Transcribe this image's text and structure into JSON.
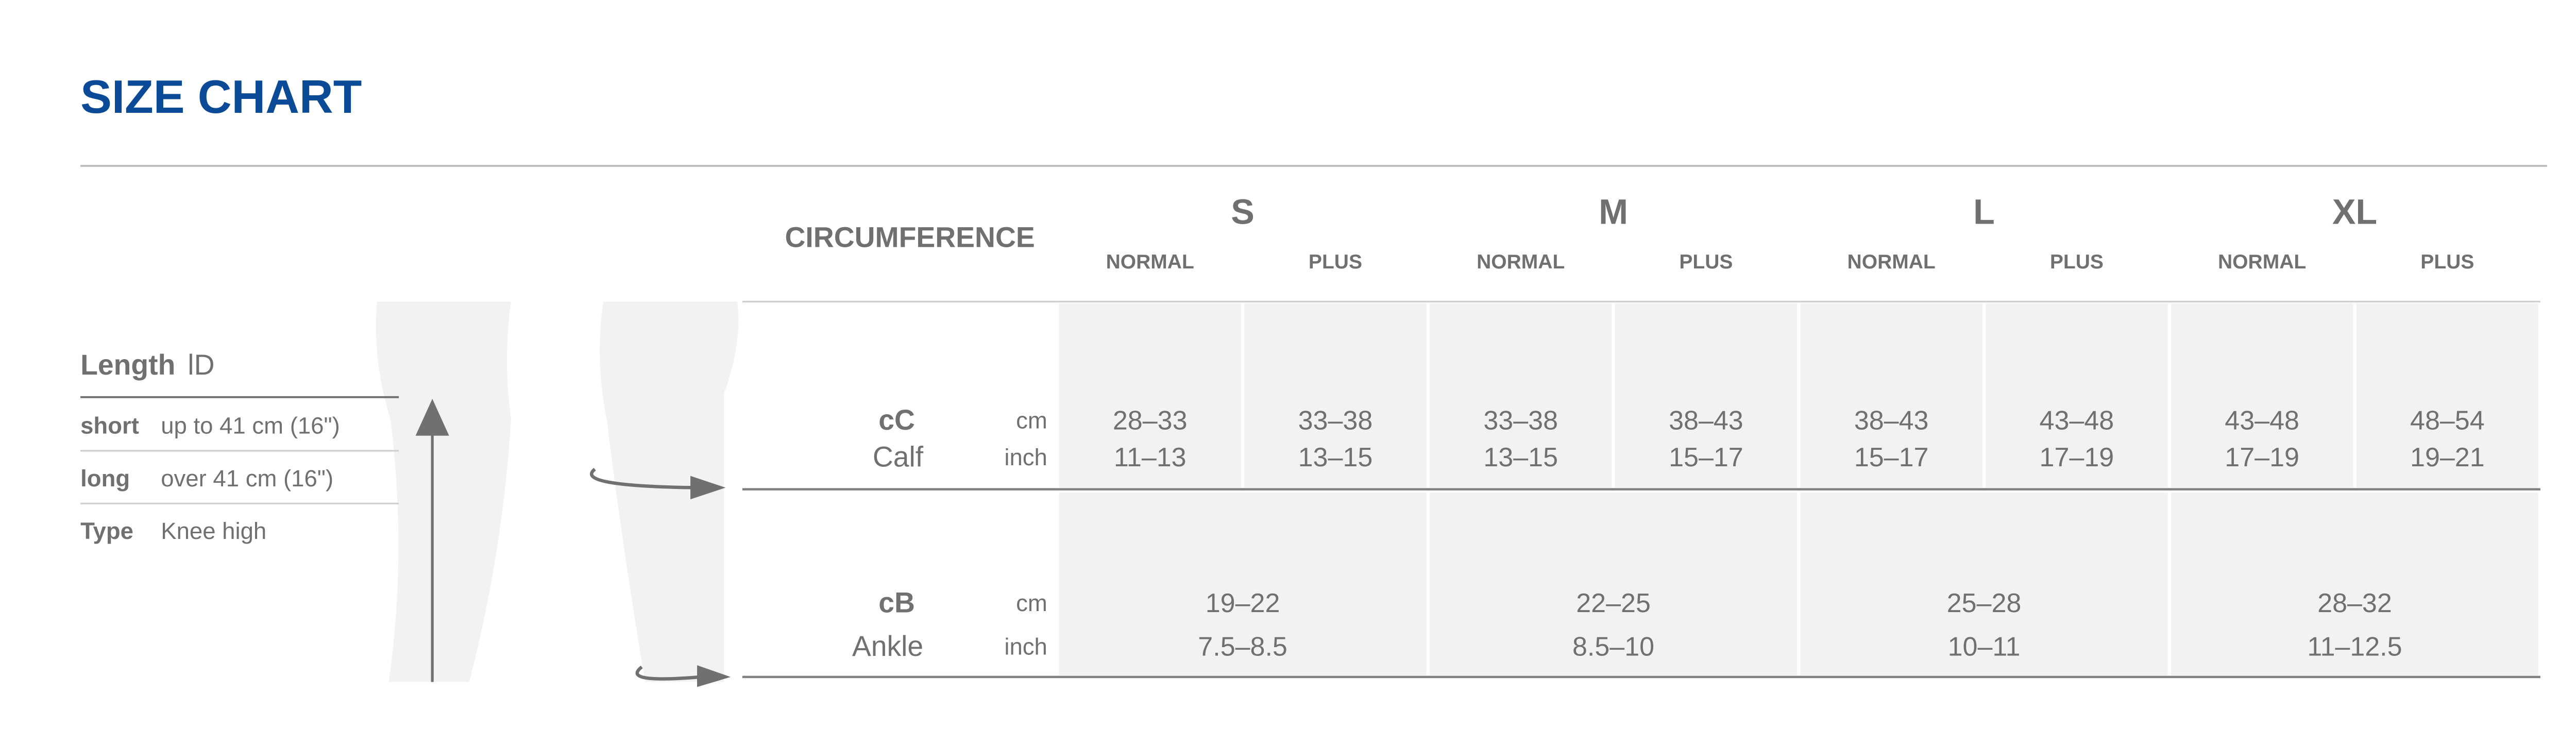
{
  "title": "SIZE CHART",
  "length": {
    "label": "Length",
    "symbol": "lD",
    "rows": [
      {
        "label": "short",
        "value": "up to 41 cm (16\")"
      },
      {
        "label": "long",
        "value": "over 41 cm (16\")"
      },
      {
        "label": "Type",
        "value": "Knee high"
      }
    ]
  },
  "table": {
    "header": "CIRCUMFERENCE",
    "sizes": [
      {
        "name": "S",
        "variants": [
          "NORMAL",
          "PLUS"
        ]
      },
      {
        "name": "M",
        "variants": [
          "NORMAL",
          "PLUS"
        ]
      },
      {
        "name": "L",
        "variants": [
          "NORMAL",
          "PLUS"
        ]
      },
      {
        "name": "XL",
        "variants": [
          "NORMAL",
          "PLUS"
        ]
      }
    ],
    "rows": [
      {
        "code": "cC",
        "name": "Calf",
        "units": [
          "cm",
          "inch"
        ],
        "cm": [
          "28–33",
          "33–38",
          "33–38",
          "38–43",
          "38–43",
          "43–48",
          "43–48",
          "48–54"
        ],
        "inch": [
          "11–13",
          "13–15",
          "13–15",
          "15–17",
          "15–17",
          "17–19",
          "17–19",
          "19–21"
        ]
      },
      {
        "code": "cB",
        "name": "Ankle",
        "units": [
          "cm",
          "inch"
        ],
        "cm": [
          "19–22",
          "22–25",
          "25–28",
          "28–32"
        ],
        "inch": [
          "7.5–8.5",
          "8.5–10",
          "10–11",
          "11–12.5"
        ]
      }
    ]
  }
}
